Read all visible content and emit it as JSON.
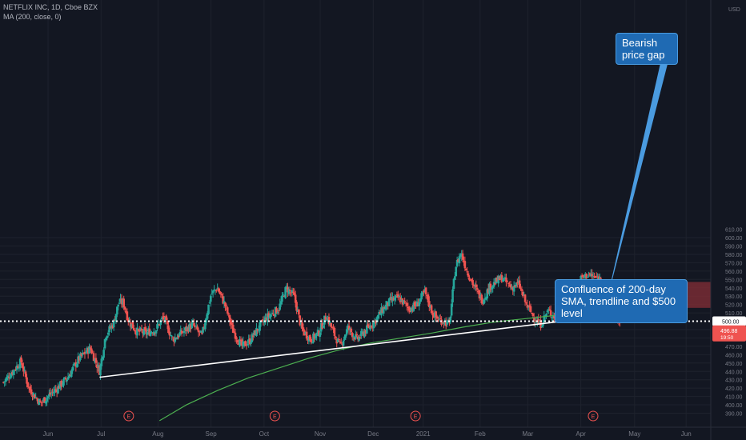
{
  "legend": {
    "symbol": "NETFLIX INC, 1D, Cboe BZX",
    "indicator": "MA (200, close, 0)"
  },
  "annotations": {
    "gap": "Bearish price gap",
    "confluence": "Confluence of 200-day SMA, trendline and $500 level"
  },
  "currency": "USD",
  "price_tags": {
    "level": "500.00",
    "last": "496.88",
    "countdown": "19:50"
  },
  "earnings_marker": "E",
  "colors": {
    "background": "#131722",
    "up": "#26a69a",
    "down": "#ef5350",
    "ma": "#4caf50",
    "trendline": "#ffffff",
    "gap_zone": "#7b2c35",
    "callout": "#1f6ab3",
    "axis_text": "#787b86",
    "grid": "#1e222d"
  },
  "chart_data": {
    "type": "candlestick",
    "title": "NETFLIX INC, 1D, Cboe BZX",
    "ylim": [
      385,
      610
    ],
    "y_ticks": [
      390,
      400,
      410,
      420,
      430,
      440,
      450,
      460,
      470,
      480,
      490,
      500,
      510,
      520,
      530,
      540,
      550,
      560,
      570,
      580,
      590,
      600
    ],
    "y_tick_labels": [
      "390.00",
      "400.00",
      "410.00",
      "420.00",
      "430.00",
      "440.00",
      "450.00",
      "460.00",
      "470.00",
      "480.00",
      "490.00",
      "500.00",
      "510.00",
      "520.00",
      "530.00",
      "540.00",
      "550.00",
      "560.00",
      "570.00",
      "580.00",
      "590.00",
      "600.00"
    ],
    "top_tick_label": "610.00",
    "x_labels": [
      "Jun",
      "Jul",
      "Aug",
      "Sep",
      "Oct",
      "Nov",
      "Dec",
      "2021",
      "Feb",
      "Mar",
      "Apr",
      "May",
      "Jun"
    ],
    "x_label_days": [
      0,
      69,
      143,
      212,
      281,
      354,
      423,
      488,
      562,
      624,
      693,
      763,
      830
    ],
    "day_range": [
      -60,
      875
    ],
    "key_closes": [
      {
        "day": -58,
        "price": 427
      },
      {
        "day": -35,
        "price": 452
      },
      {
        "day": -25,
        "price": 420
      },
      {
        "day": -10,
        "price": 402
      },
      {
        "day": 12,
        "price": 420
      },
      {
        "day": 25,
        "price": 432
      },
      {
        "day": 40,
        "price": 455
      },
      {
        "day": 55,
        "price": 468
      },
      {
        "day": 67,
        "price": 440
      },
      {
        "day": 75,
        "price": 484
      },
      {
        "day": 85,
        "price": 497
      },
      {
        "day": 92,
        "price": 523
      },
      {
        "day": 98,
        "price": 522
      },
      {
        "day": 105,
        "price": 500
      },
      {
        "day": 115,
        "price": 488
      },
      {
        "day": 128,
        "price": 486
      },
      {
        "day": 140,
        "price": 490
      },
      {
        "day": 150,
        "price": 505
      },
      {
        "day": 162,
        "price": 478
      },
      {
        "day": 175,
        "price": 487
      },
      {
        "day": 188,
        "price": 496
      },
      {
        "day": 200,
        "price": 482
      },
      {
        "day": 212,
        "price": 532
      },
      {
        "day": 220,
        "price": 540
      },
      {
        "day": 230,
        "price": 520
      },
      {
        "day": 240,
        "price": 490
      },
      {
        "day": 252,
        "price": 470
      },
      {
        "day": 262,
        "price": 476
      },
      {
        "day": 272,
        "price": 490
      },
      {
        "day": 285,
        "price": 505
      },
      {
        "day": 300,
        "price": 515
      },
      {
        "day": 310,
        "price": 540
      },
      {
        "day": 320,
        "price": 530
      },
      {
        "day": 330,
        "price": 490
      },
      {
        "day": 342,
        "price": 478
      },
      {
        "day": 352,
        "price": 486
      },
      {
        "day": 362,
        "price": 507
      },
      {
        "day": 372,
        "price": 485
      },
      {
        "day": 380,
        "price": 470
      },
      {
        "day": 390,
        "price": 492
      },
      {
        "day": 402,
        "price": 478
      },
      {
        "day": 412,
        "price": 488
      },
      {
        "day": 425,
        "price": 500
      },
      {
        "day": 436,
        "price": 515
      },
      {
        "day": 446,
        "price": 525
      },
      {
        "day": 456,
        "price": 528
      },
      {
        "day": 470,
        "price": 515
      },
      {
        "day": 480,
        "price": 520
      },
      {
        "day": 490,
        "price": 535
      },
      {
        "day": 500,
        "price": 510
      },
      {
        "day": 507,
        "price": 502
      },
      {
        "day": 515,
        "price": 500
      },
      {
        "day": 522,
        "price": 496
      },
      {
        "day": 530,
        "price": 565
      },
      {
        "day": 537,
        "price": 582
      },
      {
        "day": 545,
        "price": 560
      },
      {
        "day": 555,
        "price": 540
      },
      {
        "day": 565,
        "price": 525
      },
      {
        "day": 575,
        "price": 542
      },
      {
        "day": 590,
        "price": 552
      },
      {
        "day": 603,
        "price": 540
      },
      {
        "day": 612,
        "price": 545
      },
      {
        "day": 622,
        "price": 520
      },
      {
        "day": 632,
        "price": 505
      },
      {
        "day": 640,
        "price": 495
      },
      {
        "day": 650,
        "price": 512
      },
      {
        "day": 660,
        "price": 505
      },
      {
        "day": 672,
        "price": 515
      },
      {
        "day": 682,
        "price": 530
      },
      {
        "day": 692,
        "price": 550
      },
      {
        "day": 702,
        "price": 556
      },
      {
        "day": 712,
        "price": 552
      },
      {
        "day": 720,
        "price": 550
      },
      {
        "day": 724,
        "price": 510
      },
      {
        "day": 730,
        "price": 508
      },
      {
        "day": 740,
        "price": 505
      },
      {
        "day": 745,
        "price": 496.88
      }
    ],
    "ma200": [
      {
        "day": 145,
        "price": 381
      },
      {
        "day": 180,
        "price": 400
      },
      {
        "day": 220,
        "price": 417
      },
      {
        "day": 260,
        "price": 432
      },
      {
        "day": 300,
        "price": 444
      },
      {
        "day": 340,
        "price": 456
      },
      {
        "day": 380,
        "price": 466
      },
      {
        "day": 420,
        "price": 474
      },
      {
        "day": 460,
        "price": 480
      },
      {
        "day": 500,
        "price": 486
      },
      {
        "day": 540,
        "price": 493
      },
      {
        "day": 580,
        "price": 499
      },
      {
        "day": 620,
        "price": 503
      },
      {
        "day": 660,
        "price": 507
      },
      {
        "day": 700,
        "price": 512
      },
      {
        "day": 730,
        "price": 514
      },
      {
        "day": 745,
        "price": 514
      }
    ],
    "trendline": {
      "start": {
        "day": 67,
        "price": 433
      },
      "end": {
        "day": 722,
        "price": 506
      }
    },
    "gap_zone": {
      "day_start": 707,
      "day_end": 875,
      "price_low": 516,
      "price_high": 547
    },
    "horizontal_level": 500.0,
    "last_price": 496.88,
    "earnings_days": [
      105,
      295,
      478,
      709
    ]
  }
}
